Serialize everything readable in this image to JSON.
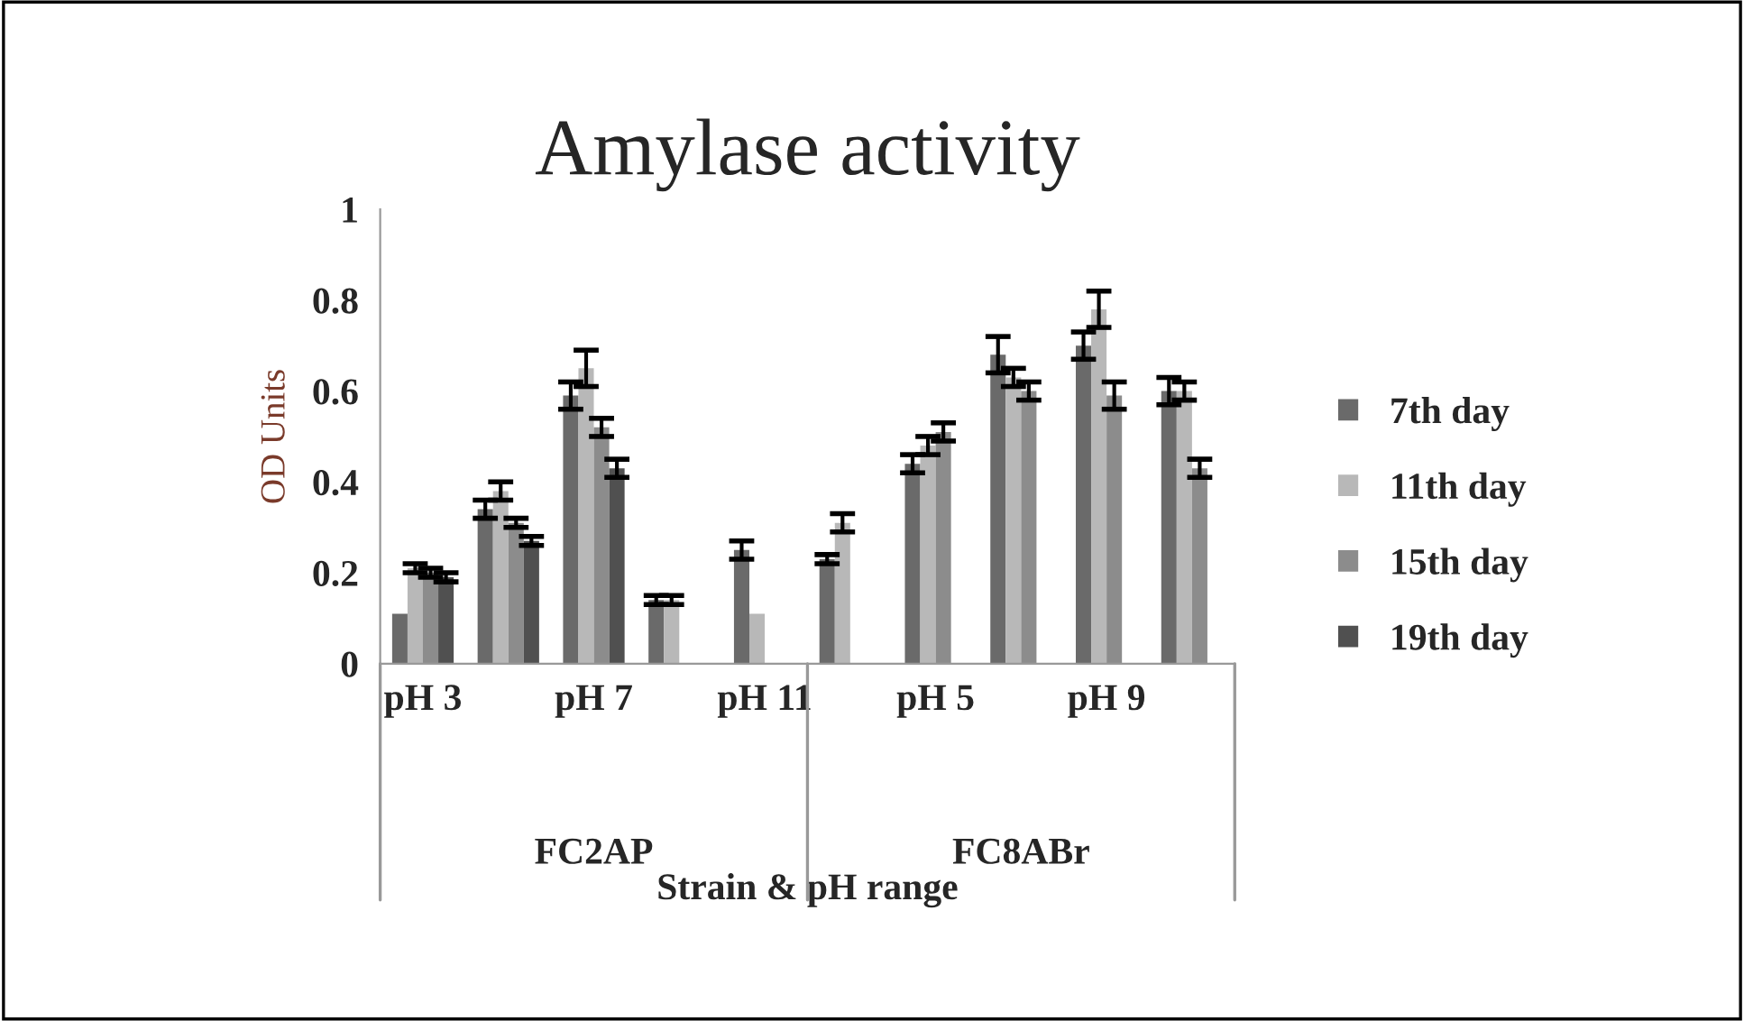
{
  "chart_data": {
    "type": "bar",
    "title": "Amylase activity",
    "xlabel": "Strain & pH range",
    "ylabel": "OD Units",
    "categories": [
      "pH 3",
      null,
      "pH 7",
      null,
      "pH 11",
      null,
      "pH 5",
      null,
      "pH 9",
      null
    ],
    "series": [
      {
        "name": "7th day",
        "color": "#6a6a6a",
        "values": [
          0.11,
          0.34,
          0.59,
          0.14,
          0.25,
          0.23,
          0.44,
          0.68,
          0.7,
          0.6
        ],
        "errors": [
          null,
          0.02,
          0.03,
          0.01,
          0.02,
          0.01,
          0.02,
          0.04,
          0.03,
          0.03
        ]
      },
      {
        "name": "11th day",
        "color": "#b8b8b8",
        "values": [
          0.21,
          0.38,
          0.65,
          0.14,
          0.11,
          0.31,
          0.48,
          0.63,
          0.78,
          0.6
        ],
        "errors": [
          0.01,
          0.02,
          0.04,
          0.01,
          null,
          0.02,
          0.02,
          0.02,
          0.04,
          0.02
        ]
      },
      {
        "name": "15th day",
        "color": "#8c8c8c",
        "values": [
          0.2,
          0.31,
          0.52,
          0,
          0,
          0,
          0.51,
          0.6,
          0.59,
          0.43
        ],
        "errors": [
          0.01,
          0.01,
          0.02,
          null,
          null,
          null,
          0.02,
          0.02,
          0.03,
          0.02
        ]
      },
      {
        "name": "19th day",
        "color": "#505050",
        "values": [
          0.19,
          0.27,
          0.43,
          0,
          0,
          0,
          0,
          0,
          0,
          0
        ],
        "errors": [
          0.01,
          0.01,
          0.02,
          null,
          null,
          null,
          null,
          null,
          null,
          null
        ]
      }
    ],
    "annotations": [
      "FC2AP",
      "FC8ABr"
    ],
    "ylim": [
      0,
      1
    ],
    "yticks": [
      0,
      0.2,
      0.4,
      0.6,
      0.8,
      1
    ],
    "grid": false,
    "legend": "right"
  }
}
